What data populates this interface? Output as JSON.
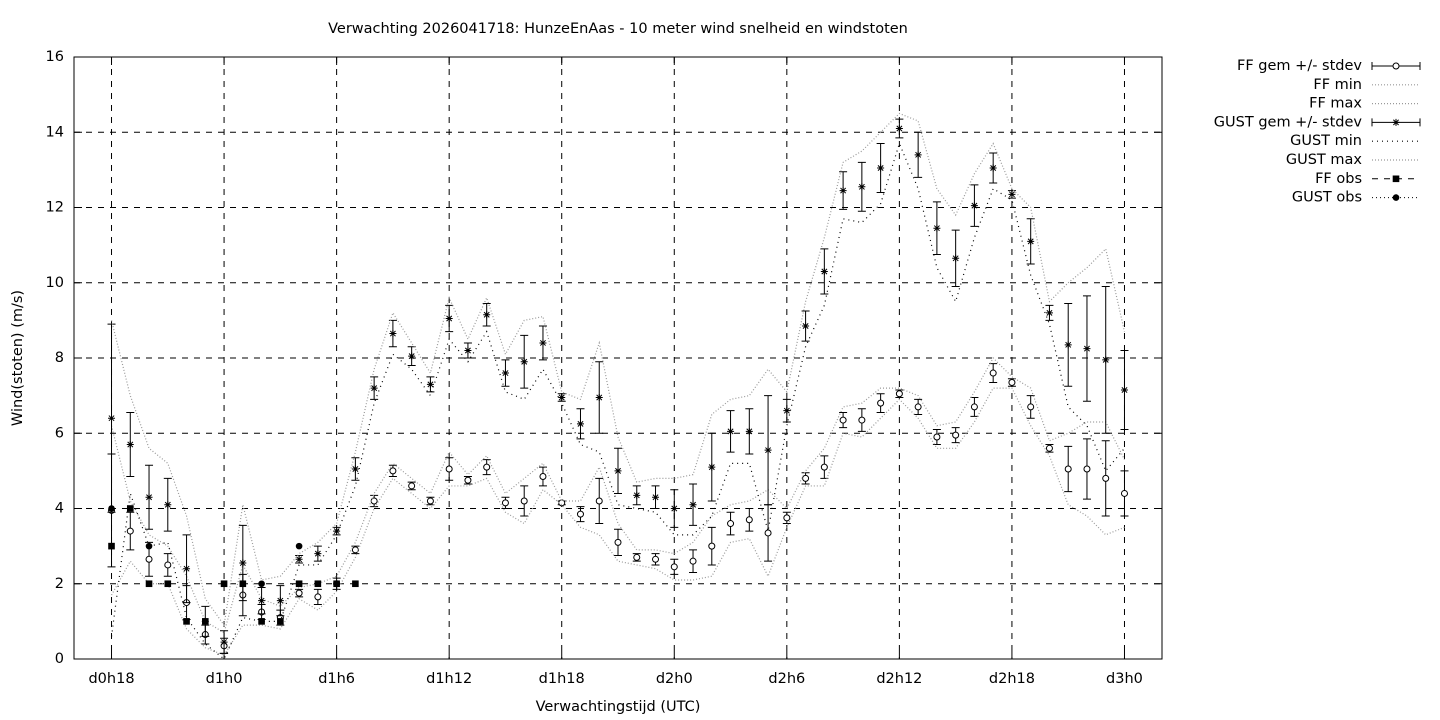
{
  "chart_data": {
    "type": "errorbar",
    "title": "Verwachting 2026041718: HunzeEnAas - 10 meter wind snelheid en windstoten",
    "x_label": "Verwachtingstijd (UTC)",
    "y_label": "Wind(stoten) (m/s)",
    "grid": true,
    "legend": "outside-top-right",
    "xlim": [
      16,
      74
    ],
    "xticks": [
      {
        "value": 18,
        "label": "d0h18"
      },
      {
        "value": 24,
        "label": "d1h0"
      },
      {
        "value": 30,
        "label": "d1h6"
      },
      {
        "value": 36,
        "label": "d1h12"
      },
      {
        "value": 42,
        "label": "d1h18"
      },
      {
        "value": 48,
        "label": "d2h0"
      },
      {
        "value": 54,
        "label": "d2h6"
      },
      {
        "value": 60,
        "label": "d2h12"
      },
      {
        "value": 66,
        "label": "d2h18"
      },
      {
        "value": 72,
        "label": "d3h0"
      }
    ],
    "ylim": [
      0,
      16
    ],
    "yticks": [
      0,
      2,
      4,
      6,
      8,
      10,
      12,
      14,
      16
    ],
    "x": [
      18,
      19,
      20,
      21,
      22,
      23,
      24,
      25,
      26,
      27,
      28,
      29,
      30,
      31,
      32,
      33,
      34,
      35,
      36,
      37,
      38,
      39,
      40,
      41,
      42,
      43,
      44,
      45,
      46,
      47,
      48,
      49,
      50,
      51,
      52,
      53,
      54,
      55,
      56,
      57,
      58,
      59,
      60,
      61,
      62,
      63,
      64,
      65,
      66,
      67,
      68,
      69,
      70,
      71,
      72
    ],
    "series": [
      {
        "name": "FF gem +/- stdev",
        "style": "errorbars",
        "marker": "circle",
        "color": "#000000",
        "values": [
          3.95,
          3.4,
          2.65,
          2.5,
          1.5,
          0.65,
          0.35,
          1.7,
          1.25,
          1.1,
          1.75,
          1.65,
          2.0,
          2.9,
          4.2,
          5.0,
          4.6,
          4.2,
          5.05,
          4.75,
          5.1,
          4.15,
          4.2,
          4.85,
          4.15,
          3.85,
          4.2,
          3.1,
          2.7,
          2.65,
          2.45,
          2.6,
          3.0,
          3.6,
          3.7,
          3.35,
          3.75,
          4.8,
          5.1,
          6.35,
          6.35,
          6.8,
          7.05,
          6.7,
          5.9,
          5.95,
          6.7,
          7.6,
          7.35,
          6.7,
          5.6,
          5.05,
          5.05,
          4.8,
          4.4
        ],
        "errors": [
          1.5,
          0.5,
          0.45,
          0.3,
          0.45,
          0.25,
          0.2,
          0.55,
          0.2,
          0.2,
          0.1,
          0.2,
          0.15,
          0.1,
          0.15,
          0.15,
          0.1,
          0.1,
          0.3,
          0.1,
          0.2,
          0.15,
          0.4,
          0.25,
          0.05,
          0.2,
          0.6,
          0.35,
          0.1,
          0.15,
          0.2,
          0.3,
          0.5,
          0.3,
          0.3,
          0.75,
          0.15,
          0.15,
          0.3,
          0.2,
          0.3,
          0.25,
          0.1,
          0.2,
          0.2,
          0.2,
          0.25,
          0.25,
          0.1,
          0.3,
          0.1,
          0.6,
          0.8,
          1.0,
          0.6
        ]
      },
      {
        "name": "FF min",
        "style": "dotted",
        "color": "#999999",
        "dash": "1,2",
        "values": [
          1.7,
          2.6,
          2.0,
          2.0,
          0.8,
          0.3,
          0.1,
          0.9,
          0.9,
          0.8,
          1.6,
          1.3,
          1.8,
          2.7,
          4.0,
          4.8,
          4.4,
          4.0,
          4.6,
          4.6,
          4.8,
          3.9,
          3.6,
          4.5,
          4.1,
          3.5,
          3.3,
          2.6,
          2.5,
          2.4,
          2.1,
          2.1,
          2.2,
          3.1,
          3.2,
          2.2,
          3.5,
          4.6,
          4.6,
          6.0,
          5.9,
          6.4,
          6.9,
          6.4,
          5.6,
          5.6,
          6.3,
          7.2,
          7.2,
          6.2,
          5.4,
          4.1,
          3.8,
          3.3,
          3.5
        ]
      },
      {
        "name": "FF max",
        "style": "dotted",
        "color": "#999999",
        "dash": "1,2",
        "values": [
          6.2,
          4.2,
          3.3,
          3.0,
          2.2,
          1.0,
          0.7,
          2.5,
          1.6,
          1.4,
          1.9,
          2.0,
          2.2,
          3.1,
          4.4,
          5.2,
          4.8,
          4.4,
          5.5,
          4.9,
          5.4,
          4.4,
          4.8,
          5.2,
          4.2,
          4.2,
          5.1,
          3.6,
          2.9,
          2.9,
          2.8,
          3.1,
          3.8,
          4.1,
          4.2,
          4.5,
          4.0,
          5.0,
          5.6,
          6.7,
          6.8,
          7.2,
          7.2,
          7.0,
          6.2,
          6.3,
          7.1,
          8.0,
          7.5,
          7.2,
          5.8,
          6.0,
          6.3,
          6.3,
          5.3
        ]
      },
      {
        "name": "GUST gem +/- stdev",
        "style": "errorbars",
        "marker": "star",
        "color": "#000000",
        "values": [
          6.4,
          5.7,
          4.3,
          4.1,
          2.4,
          1.0,
          0.45,
          2.55,
          1.55,
          1.55,
          2.65,
          2.8,
          3.4,
          5.05,
          7.2,
          8.65,
          8.05,
          7.3,
          9.05,
          8.2,
          9.15,
          7.6,
          7.9,
          8.4,
          6.95,
          6.25,
          6.95,
          5.0,
          4.35,
          4.3,
          4.0,
          4.1,
          5.1,
          6.05,
          6.05,
          5.55,
          6.6,
          8.85,
          10.3,
          12.45,
          12.55,
          13.05,
          14.1,
          13.4,
          11.45,
          10.65,
          12.05,
          13.05,
          12.35,
          11.1,
          9.2,
          8.35,
          8.25,
          7.95,
          7.15
        ],
        "errors": [
          2.5,
          0.85,
          0.85,
          0.7,
          0.9,
          0.4,
          0.3,
          1.0,
          0.35,
          0.4,
          0.1,
          0.2,
          0.1,
          0.3,
          0.3,
          0.35,
          0.25,
          0.2,
          0.35,
          0.2,
          0.3,
          0.35,
          0.7,
          0.45,
          0.1,
          0.4,
          0.95,
          0.6,
          0.25,
          0.3,
          0.5,
          0.55,
          0.9,
          0.55,
          0.6,
          1.45,
          0.3,
          0.4,
          0.6,
          0.5,
          0.65,
          0.65,
          0.25,
          0.6,
          0.7,
          0.75,
          0.55,
          0.4,
          0.1,
          0.6,
          0.2,
          1.1,
          1.4,
          1.95,
          1.05
        ]
      },
      {
        "name": "GUST min",
        "style": "dotted",
        "color": "#000000",
        "dash": "1,4",
        "values": [
          0.6,
          4.4,
          3.0,
          3.1,
          1.1,
          0.4,
          0.0,
          1.1,
          1.0,
          1.0,
          2.5,
          2.5,
          3.3,
          4.6,
          6.8,
          8.1,
          7.7,
          7.0,
          8.5,
          7.9,
          8.7,
          7.1,
          6.9,
          7.7,
          6.8,
          5.7,
          5.5,
          4.1,
          4.0,
          3.9,
          3.3,
          3.3,
          3.8,
          5.2,
          5.2,
          3.4,
          6.2,
          8.3,
          9.4,
          11.7,
          11.6,
          12.1,
          13.7,
          12.5,
          10.4,
          9.5,
          11.2,
          12.5,
          12.2,
          10.2,
          8.9,
          6.7,
          6.2,
          5.0,
          5.6
        ]
      },
      {
        "name": "GUST max",
        "style": "dotted",
        "color": "#999999",
        "dash": "1,2",
        "values": [
          9.0,
          7.0,
          5.6,
          5.2,
          3.8,
          1.6,
          0.9,
          4.1,
          2.1,
          2.2,
          2.8,
          3.1,
          3.6,
          5.5,
          7.7,
          9.2,
          8.4,
          7.6,
          9.6,
          8.5,
          9.6,
          8.1,
          9.0,
          9.1,
          7.1,
          6.9,
          8.4,
          5.9,
          4.7,
          4.8,
          4.8,
          4.9,
          6.5,
          6.9,
          7.0,
          7.7,
          7.1,
          9.5,
          11.2,
          13.2,
          13.5,
          14.0,
          14.5,
          14.3,
          12.5,
          11.8,
          12.9,
          13.7,
          12.5,
          12.0,
          9.5,
          10.0,
          10.4,
          10.9,
          8.7
        ]
      },
      {
        "name": "FF obs",
        "style": "points",
        "marker": "square",
        "color": "#000000",
        "values": [
          3.0,
          4.0,
          2.0,
          2.0,
          1.0,
          1.0,
          2.0,
          2.0,
          1.0,
          1.0,
          2.0,
          2.0,
          2.0,
          2.0,
          null,
          null,
          null,
          null,
          null,
          null,
          null,
          null,
          null,
          null,
          null,
          null,
          null,
          null,
          null,
          null,
          null,
          null,
          null,
          null,
          null,
          null,
          null,
          null,
          null,
          null,
          null,
          null,
          null,
          null,
          null,
          null,
          null,
          null,
          null,
          null,
          null,
          null,
          null,
          null,
          null
        ]
      },
      {
        "name": "GUST obs",
        "style": "points",
        "marker": "dot",
        "color": "#000000",
        "values": [
          4.0,
          null,
          3.0,
          null,
          null,
          null,
          null,
          null,
          2.0,
          null,
          3.0,
          null,
          null,
          null,
          null,
          null,
          null,
          null,
          null,
          null,
          null,
          null,
          null,
          null,
          null,
          null,
          null,
          null,
          null,
          null,
          null,
          null,
          null,
          null,
          null,
          null,
          null,
          null,
          null,
          null,
          null,
          null,
          null,
          null,
          null,
          null,
          null,
          null,
          null,
          null,
          null,
          null,
          null,
          null,
          null
        ]
      }
    ]
  }
}
